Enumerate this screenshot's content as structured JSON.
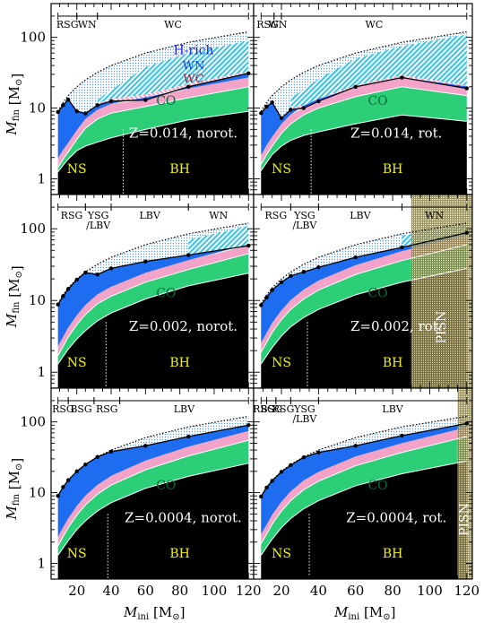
{
  "figure": {
    "ylabel": "M",
    "ylabel_sub": "fin",
    "ylabel_unit": "[M",
    "ylabel_unit_sub": "⊙",
    "ylabel_unit_end": "]",
    "xlabel": "M",
    "xlabel_sub": "ini",
    "xlabel_unit": "[M",
    "xlabel_unit_sub": "⊙",
    "xlabel_unit_end": "]",
    "ytick_labels": [
      "1",
      "10",
      "100"
    ],
    "xtick_labels": [
      "20",
      "40",
      "60",
      "80",
      "100",
      "120"
    ],
    "colors": {
      "remnant": "#000000",
      "co": "#2ccf78",
      "he": "#f4a3c8",
      "h_env": "#1e6cf0",
      "wn": "#34c4e8",
      "wc": "#f0a8c8",
      "hrich": "#a8c8f0",
      "yellow": "#f2f20a",
      "white": "#ffffff",
      "wc_text": "#b0102c",
      "wn_text": "#1040d8",
      "hrich_text": "#1d22d8",
      "pisn": "#c8b878"
    }
  },
  "chart_data": [
    {
      "type": "area",
      "panel": "Z=0.014, norot.",
      "label": "Z=0.014, norot.",
      "region_labels": {
        "ns": "NS",
        "bh": "BH",
        "co": "CO",
        "hrich": "H-rich",
        "wn": "WN",
        "wc": "WC"
      },
      "phases": [
        {
          "label": "RSG",
          "from": 9,
          "to": 20
        },
        {
          "label": "WN",
          "from": 20,
          "to": 32
        },
        {
          "label": "WC",
          "from": 32,
          "to": 120
        }
      ],
      "ns_bh_boundary": 47,
      "x": [
        9,
        12,
        15,
        20,
        25,
        32,
        40,
        60,
        85,
        120
      ],
      "final_mass": [
        8.8,
        11.0,
        13.2,
        9.0,
        8.4,
        11.0,
        12.5,
        13.0,
        20.0,
        31.0
      ],
      "co_core": [
        1.45,
        1.9,
        2.4,
        3.6,
        5.2,
        7.0,
        8.5,
        10.5,
        14.0,
        20.0
      ],
      "remnant": [
        1.25,
        1.55,
        1.9,
        2.5,
        2.9,
        3.3,
        3.8,
        5.0,
        6.8,
        9.0
      ],
      "initial_envelope": [
        9,
        12,
        15,
        20,
        25,
        32,
        40,
        60,
        85,
        120
      ],
      "wn_top": [
        null,
        null,
        null,
        null,
        null,
        13,
        18,
        38,
        60,
        90
      ],
      "wc_top": [
        null,
        null,
        null,
        null,
        null,
        11.5,
        13.5,
        15.5,
        22,
        33
      ]
    },
    {
      "type": "area",
      "panel": "Z=0.014, rot.",
      "label": "Z=0.014, rot.",
      "region_labels": {
        "ns": "NS",
        "bh": "BH",
        "co": "CO"
      },
      "phases": [
        {
          "label": "RSG",
          "from": 9,
          "to": 16
        },
        {
          "label": "WN",
          "from": 16,
          "to": 20
        },
        {
          "label": "WC",
          "from": 20,
          "to": 120
        }
      ],
      "ns_bh_boundary": 36,
      "x": [
        9,
        12,
        15,
        20,
        25,
        32,
        40,
        60,
        85,
        120
      ],
      "final_mass": [
        8.5,
        10.5,
        12.0,
        7.2,
        9.5,
        10.0,
        12.5,
        20.0,
        27.0,
        19.0
      ],
      "co_core": [
        1.6,
        2.2,
        2.9,
        4.4,
        6.0,
        8.0,
        10.0,
        14.5,
        20.0,
        15.0
      ],
      "remnant": [
        1.3,
        1.7,
        2.2,
        2.9,
        3.5,
        4.1,
        4.6,
        6.0,
        8.0,
        6.5
      ],
      "initial_envelope": [
        9,
        12,
        15,
        20,
        25,
        32,
        40,
        60,
        85,
        120
      ],
      "wn_top": [
        null,
        null,
        null,
        null,
        14,
        18,
        26,
        50,
        75,
        110
      ],
      "wc_top": [
        null,
        null,
        null,
        null,
        10,
        11,
        13.5,
        21,
        29,
        21
      ]
    },
    {
      "type": "area",
      "panel": "Z=0.002, norot.",
      "label": "Z=0.002, norot.",
      "region_labels": {
        "ns": "NS",
        "bh": "BH",
        "co": "CO"
      },
      "phases": [
        {
          "label": "RSG",
          "from": 9,
          "to": 25
        },
        {
          "label": "YSG\n/LBV",
          "from": 25,
          "to": 40
        },
        {
          "label": "LBV",
          "from": 40,
          "to": 85
        },
        {
          "label": "WN",
          "from": 85,
          "to": 120
        }
      ],
      "ns_bh_boundary": 37,
      "x": [
        9,
        12,
        15,
        20,
        25,
        32,
        40,
        60,
        85,
        120
      ],
      "final_mass": [
        8.8,
        11.5,
        14.5,
        19.5,
        24.5,
        23.0,
        28.0,
        35.0,
        43.0,
        58.0
      ],
      "co_core": [
        1.7,
        2.3,
        3.1,
        4.6,
        6.4,
        9.0,
        11.5,
        18.0,
        27.0,
        45.0
      ],
      "remnant": [
        1.3,
        1.65,
        2.1,
        2.9,
        3.8,
        5.2,
        6.7,
        10.5,
        16.0,
        24.0
      ],
      "initial_envelope": [
        9,
        12,
        15,
        20,
        25,
        32,
        40,
        60,
        85,
        120
      ],
      "wn_top": [
        null,
        null,
        null,
        null,
        null,
        null,
        null,
        null,
        70,
        110
      ],
      "wc_top": null
    },
    {
      "type": "area",
      "panel": "Z=0.002, rot.",
      "label": "Z=0.002, rot.",
      "region_labels": {
        "ns": "NS",
        "bh": "BH",
        "co": "CO",
        "pisn": "PISN"
      },
      "phases": [
        {
          "label": "RSG",
          "from": 9,
          "to": 25
        },
        {
          "label": "YSG\n/LBV",
          "from": 25,
          "to": 40
        },
        {
          "label": "LBV",
          "from": 40,
          "to": 85
        },
        {
          "label": "WN",
          "from": 85,
          "to": 120
        }
      ],
      "ns_bh_boundary": 34,
      "pisn_from": 90,
      "x": [
        9,
        12,
        15,
        20,
        25,
        32,
        40,
        60,
        85,
        120
      ],
      "final_mass": [
        8.6,
        11.0,
        14.0,
        18.0,
        22.0,
        25.0,
        29.0,
        40.0,
        55.0,
        88.0
      ],
      "co_core": [
        1.9,
        2.6,
        3.6,
        5.4,
        7.5,
        10.5,
        14.0,
        23.0,
        36.0,
        60.0
      ],
      "remnant": [
        1.3,
        1.7,
        2.2,
        3.2,
        4.3,
        5.8,
        7.5,
        12.0,
        18.0,
        28.0
      ],
      "initial_envelope": [
        9,
        12,
        15,
        20,
        25,
        32,
        40,
        60,
        85,
        120
      ],
      "wn_top": [
        null,
        null,
        null,
        null,
        null,
        null,
        null,
        null,
        80,
        118
      ],
      "wc_top": null
    },
    {
      "type": "area",
      "panel": "Z=0.0004, norot.",
      "label": "Z=0.0004, norot.",
      "region_labels": {
        "ns": "NS",
        "bh": "BH",
        "co": "CO"
      },
      "phases": [
        {
          "label": "RSG",
          "from": 9,
          "to": 15
        },
        {
          "label": "BSG",
          "from": 15,
          "to": 30
        },
        {
          "label": "RSG",
          "from": 30,
          "to": 45
        },
        {
          "label": "LBV",
          "from": 45,
          "to": 120
        }
      ],
      "ns_bh_boundary": 38,
      "x": [
        9,
        12,
        15,
        20,
        25,
        32,
        40,
        60,
        85,
        120
      ],
      "final_mass": [
        9.0,
        12.0,
        15.0,
        20.0,
        25.0,
        32.0,
        38.0,
        46.0,
        62.0,
        90.0
      ],
      "co_core": [
        1.75,
        2.4,
        3.2,
        4.8,
        6.7,
        9.5,
        12.8,
        21.0,
        33.0,
        55.0
      ],
      "remnant": [
        1.3,
        1.65,
        2.1,
        3.0,
        4.0,
        5.5,
        7.2,
        11.5,
        17.0,
        26.0
      ],
      "initial_envelope": [
        9,
        12,
        15,
        20,
        25,
        32,
        40,
        60,
        85,
        120
      ],
      "wn_top": null,
      "wc_top": null
    },
    {
      "type": "area",
      "panel": "Z=0.0004, rot.",
      "label": "Z=0.0004, rot.",
      "region_labels": {
        "ns": "NS",
        "bh": "BH",
        "co": "CO",
        "pisn": "PISN"
      },
      "phases": [
        {
          "label": "RSG",
          "from": 9,
          "to": 12
        },
        {
          "label": "BSG",
          "from": 12,
          "to": 17
        },
        {
          "label": "RSG",
          "from": 17,
          "to": 25
        },
        {
          "label": "YSG\n/LBV",
          "from": 25,
          "to": 40
        },
        {
          "label": "LBV",
          "from": 40,
          "to": 120
        }
      ],
      "ns_bh_boundary": 35,
      "pisn_from": 115,
      "x": [
        9,
        12,
        15,
        20,
        25,
        32,
        40,
        60,
        85,
        120
      ],
      "final_mass": [
        8.8,
        11.8,
        14.7,
        19.7,
        24.5,
        31.5,
        37.0,
        46.0,
        64.0,
        95.0
      ],
      "co_core": [
        1.9,
        2.6,
        3.6,
        5.5,
        7.7,
        11.0,
        14.5,
        24.0,
        37.0,
        62.0
      ],
      "remnant": [
        1.3,
        1.7,
        2.2,
        3.2,
        4.3,
        5.9,
        7.7,
        12.5,
        18.5,
        28.0
      ],
      "initial_envelope": [
        9,
        12,
        15,
        20,
        25,
        32,
        40,
        60,
        85,
        120
      ],
      "wn_top": null,
      "wc_top": null
    }
  ]
}
